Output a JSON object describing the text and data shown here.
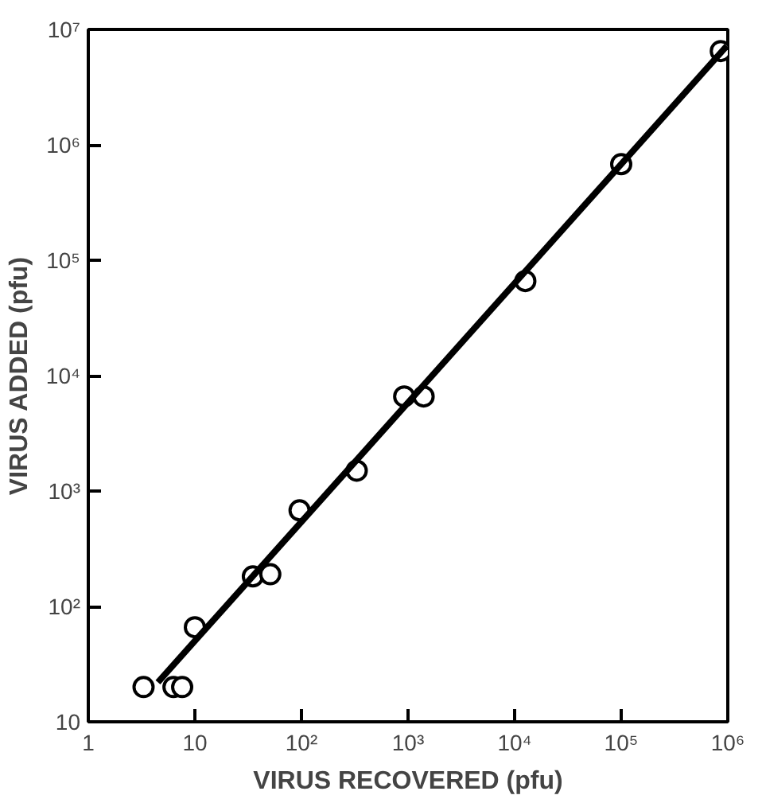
{
  "chart_data": {
    "type": "scatter",
    "xlabel": "VIRUS RECOVERED (pfu)",
    "ylabel": "VIRUS ADDED (pfu)",
    "log": "xy",
    "grid": false,
    "xlim": [
      1,
      1000000
    ],
    "ylim": [
      10,
      10000000
    ],
    "xticks": [
      1,
      10,
      {
        "value": 100,
        "label": "10²"
      },
      {
        "value": 1000,
        "label": "10³"
      },
      {
        "value": 10000,
        "label": "10⁴"
      },
      {
        "value": 100000,
        "label": "10⁵"
      },
      {
        "value": 1000000,
        "label": "10⁶"
      }
    ],
    "yticks": [
      10,
      {
        "value": 100,
        "label": "10²"
      },
      {
        "value": 1000,
        "label": "10³"
      },
      {
        "value": 10000,
        "label": "10⁴"
      },
      {
        "value": 100000,
        "label": "10⁵"
      },
      {
        "value": 1000000,
        "label": "10⁶"
      },
      {
        "value": 10000000,
        "label": "10⁷"
      }
    ],
    "series": [
      {
        "marker": "circle",
        "color": "#000000",
        "x": [
          3.3,
          6.3,
          7.6,
          10,
          35,
          51,
          96,
          330,
          920,
          1400,
          12600,
          100000,
          860000
        ],
        "values": [
          20,
          20,
          20,
          66,
          182,
          190,
          680,
          1500,
          6600,
          6600,
          66000,
          680000,
          6500000
        ]
      },
      {
        "type": "line",
        "marker": "none",
        "color": "#000000",
        "line_style": "solid",
        "x": [
          4.5,
          980000
        ],
        "values": [
          22,
          7200000
        ]
      }
    ]
  }
}
